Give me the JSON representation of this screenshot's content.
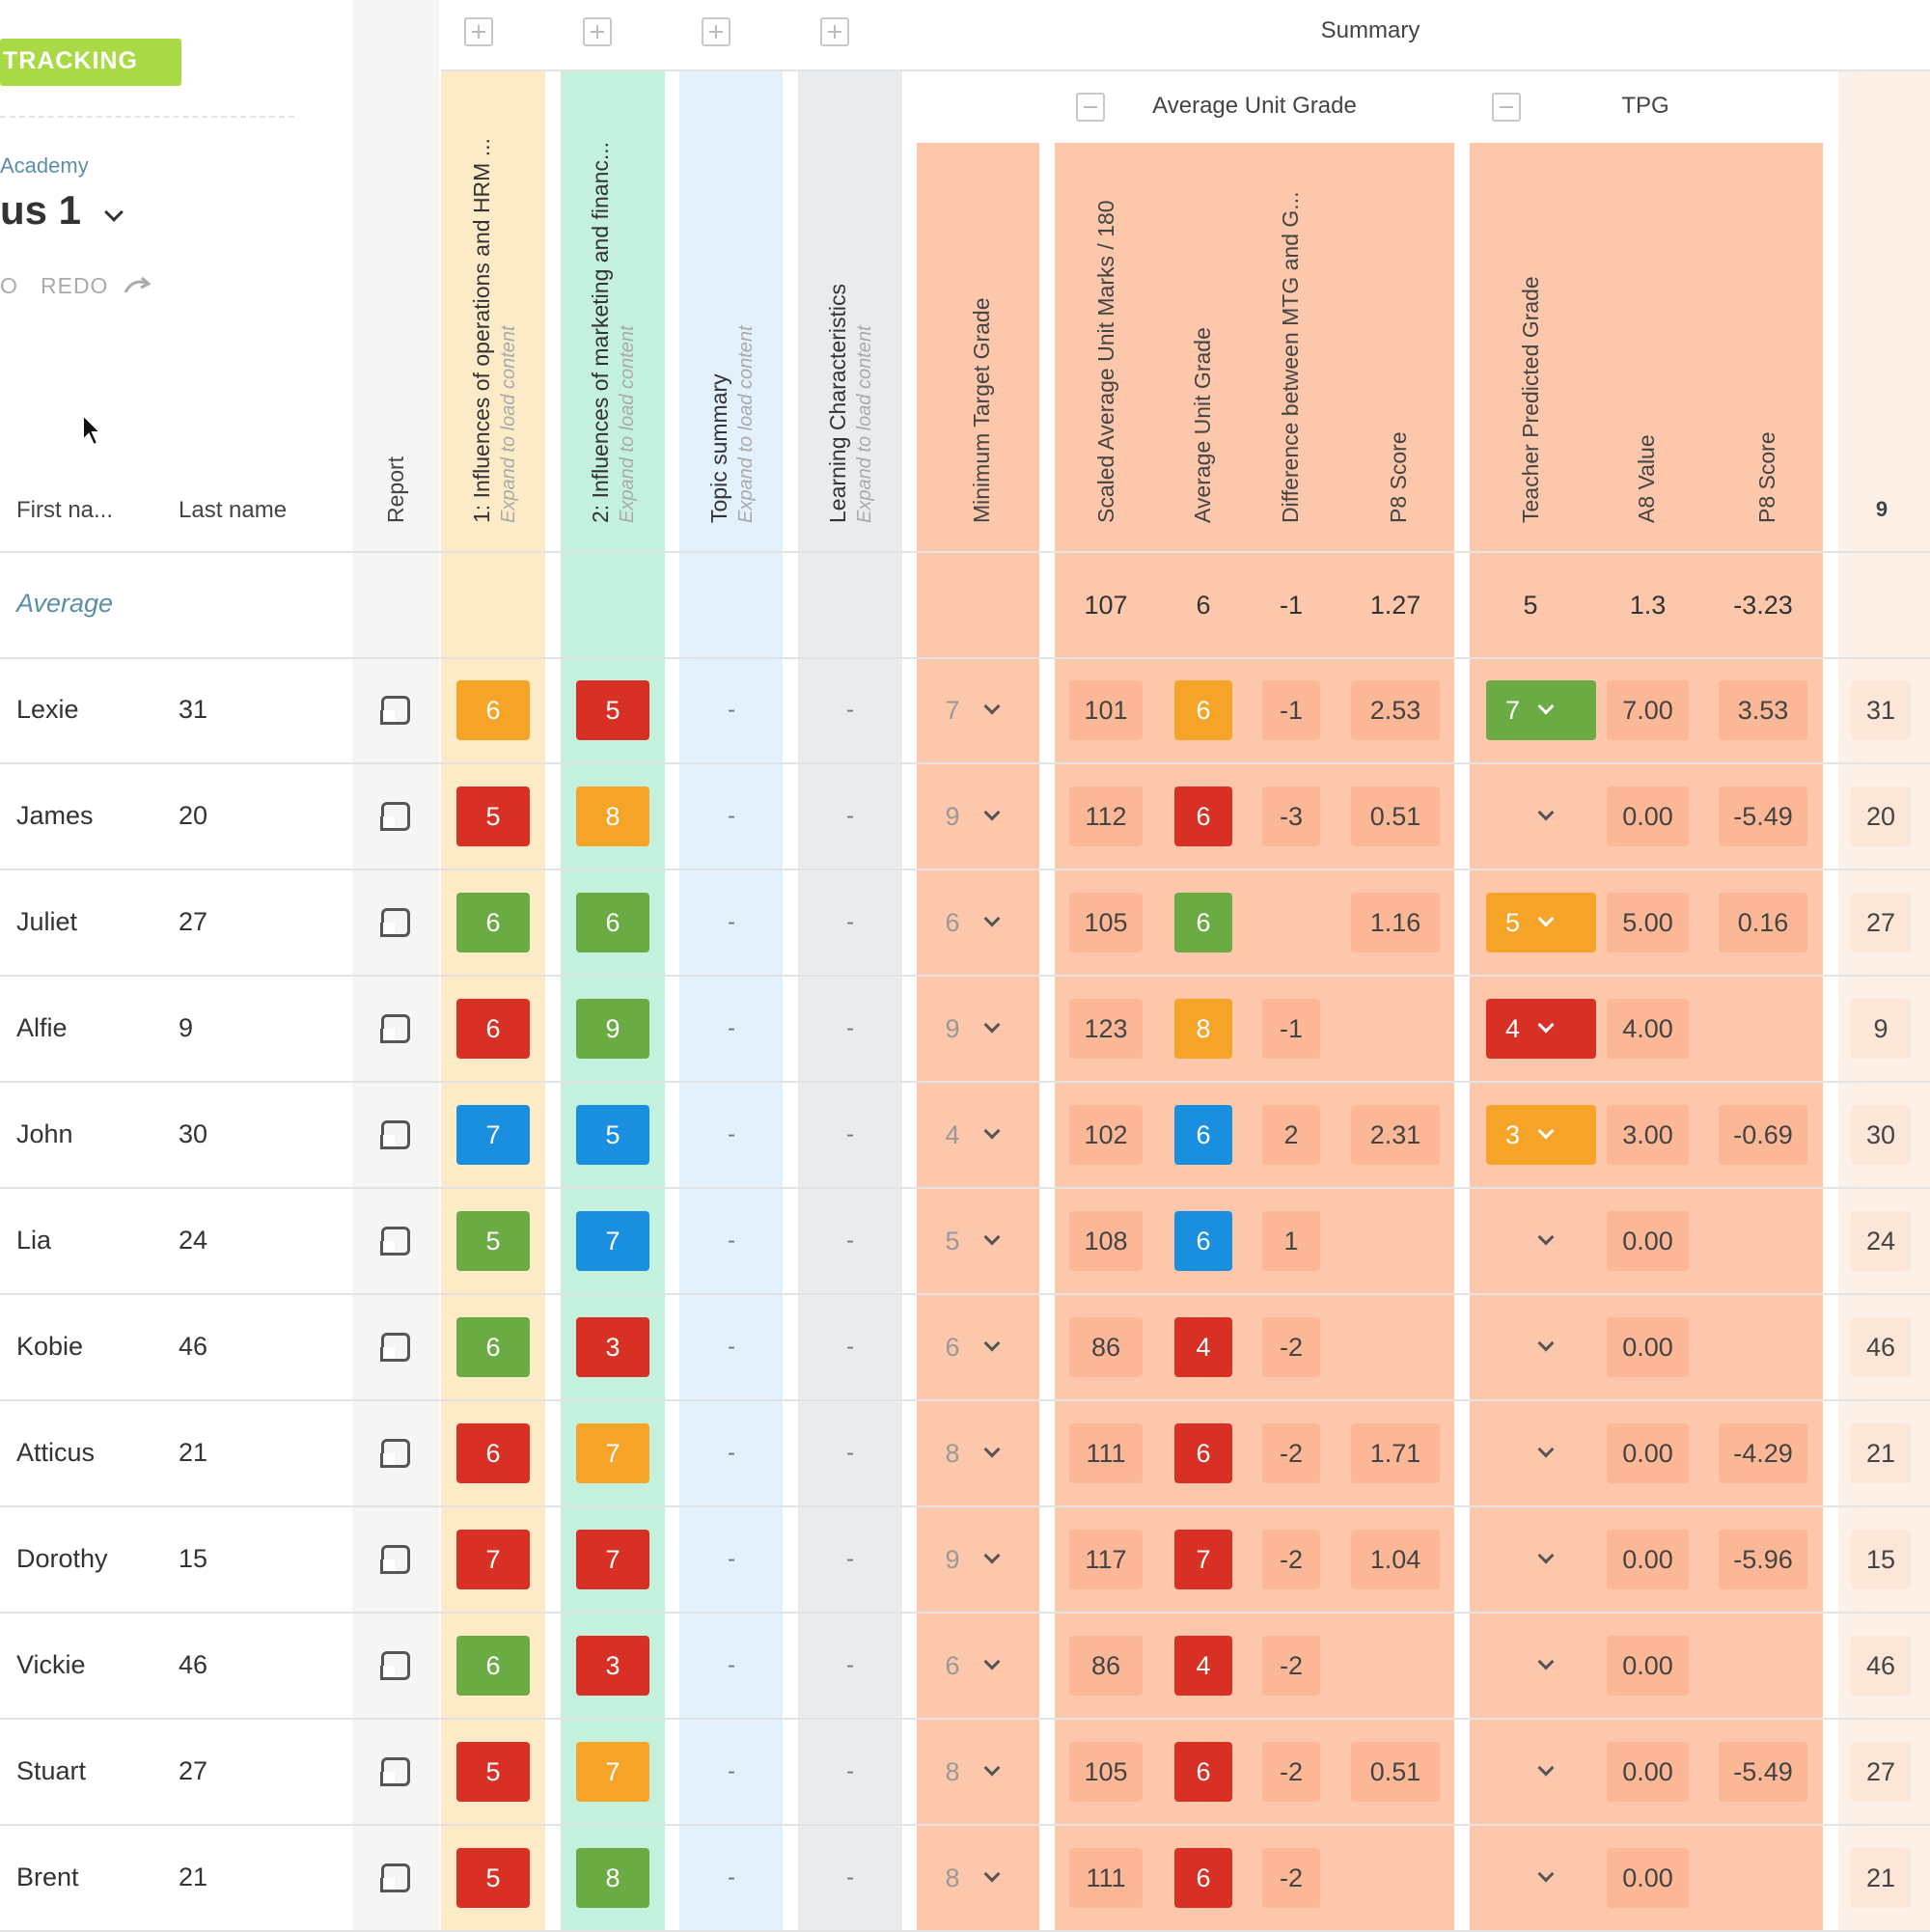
{
  "app": {
    "badge": "TRACKING",
    "school": "Academy",
    "cohort": "us 1",
    "undo_label": "O",
    "redo_label": "REDO"
  },
  "colors": {
    "tracking": "#a9d945",
    "green": "#6aab44",
    "red": "#d93025",
    "orange": "#f6a428",
    "blue": "#1a8fe0",
    "summary_bg": "#fcc7ab",
    "cell_soft": "#fbb796"
  },
  "headers": {
    "first_name": "First na...",
    "last_name": "Last name",
    "report": "Report",
    "summary": "Summary",
    "average_unit_grade_group": "Average Unit Grade",
    "tpg_group": "TPG",
    "unit1": "1: Influences of operations and HRM ...",
    "unit2": "2: Influences of marketing and financ...",
    "topic_summary": "Topic summary",
    "learning": "Learning Characteristics",
    "expand_hint": "Expand to load content",
    "mtg": "Minimum Target Grade",
    "scaled": "Scaled Average Unit Marks / 180",
    "avg_grade": "Average Unit Grade",
    "difference": "Difference between MTG and G...",
    "p8": "P8 Score",
    "tpg": "Teacher Predicted Grade",
    "a8": "A8 Value",
    "p8b": "P8 Score",
    "last_col": "9"
  },
  "average_row": {
    "label": "Average",
    "scaled": "107",
    "grade": "6",
    "diff": "-1",
    "p8": "1.27",
    "tpg": "5",
    "a8": "1.3",
    "p8b": "-3.23"
  },
  "rows": [
    {
      "first": "Lexie",
      "last": "31",
      "u1": "6",
      "u1c": "orange",
      "u2": "5",
      "u2c": "red",
      "ts": "-",
      "lc": "-",
      "mtg": "7",
      "scaled": "101",
      "grade": "6",
      "gradec": "orange",
      "diff": "-1",
      "p8": "2.53",
      "tpg": "7",
      "tpgc": "green",
      "a8": "7.00",
      "p8b": "3.53"
    },
    {
      "first": "James",
      "last": "20",
      "u1": "5",
      "u1c": "red",
      "u2": "8",
      "u2c": "orange",
      "ts": "-",
      "lc": "-",
      "mtg": "9",
      "scaled": "112",
      "grade": "6",
      "gradec": "red",
      "diff": "-3",
      "p8": "0.51",
      "tpg": "",
      "tpgc": "",
      "a8": "0.00",
      "p8b": "-5.49"
    },
    {
      "first": "Juliet",
      "last": "27",
      "u1": "6",
      "u1c": "green",
      "u2": "6",
      "u2c": "green",
      "ts": "-",
      "lc": "-",
      "mtg": "6",
      "scaled": "105",
      "grade": "6",
      "gradec": "green",
      "diff": "",
      "p8": "1.16",
      "tpg": "5",
      "tpgc": "orange",
      "a8": "5.00",
      "p8b": "0.16"
    },
    {
      "first": "Alfie",
      "last": "9",
      "u1": "6",
      "u1c": "red",
      "u2": "9",
      "u2c": "green",
      "ts": "-",
      "lc": "-",
      "mtg": "9",
      "scaled": "123",
      "grade": "8",
      "gradec": "orange",
      "diff": "-1",
      "p8": "",
      "tpg": "4",
      "tpgc": "red",
      "a8": "4.00",
      "p8b": ""
    },
    {
      "first": "John",
      "last": "30",
      "u1": "7",
      "u1c": "blue",
      "u2": "5",
      "u2c": "blue",
      "ts": "-",
      "lc": "-",
      "mtg": "4",
      "scaled": "102",
      "grade": "6",
      "gradec": "blue",
      "diff": "2",
      "p8": "2.31",
      "tpg": "3",
      "tpgc": "orange",
      "a8": "3.00",
      "p8b": "-0.69"
    },
    {
      "first": "Lia",
      "last": "24",
      "u1": "5",
      "u1c": "green",
      "u2": "7",
      "u2c": "blue",
      "ts": "-",
      "lc": "-",
      "mtg": "5",
      "scaled": "108",
      "grade": "6",
      "gradec": "blue",
      "diff": "1",
      "p8": "",
      "tpg": "",
      "tpgc": "",
      "a8": "0.00",
      "p8b": ""
    },
    {
      "first": "Kobie",
      "last": "46",
      "u1": "6",
      "u1c": "green",
      "u2": "3",
      "u2c": "red",
      "ts": "-",
      "lc": "-",
      "mtg": "6",
      "scaled": "86",
      "grade": "4",
      "gradec": "red",
      "diff": "-2",
      "p8": "",
      "tpg": "",
      "tpgc": "",
      "a8": "0.00",
      "p8b": ""
    },
    {
      "first": "Atticus",
      "last": "21",
      "u1": "6",
      "u1c": "red",
      "u2": "7",
      "u2c": "orange",
      "ts": "-",
      "lc": "-",
      "mtg": "8",
      "scaled": "111",
      "grade": "6",
      "gradec": "red",
      "diff": "-2",
      "p8": "1.71",
      "tpg": "",
      "tpgc": "",
      "a8": "0.00",
      "p8b": "-4.29"
    },
    {
      "first": "Dorothy",
      "last": "15",
      "u1": "7",
      "u1c": "red",
      "u2": "7",
      "u2c": "red",
      "ts": "-",
      "lc": "-",
      "mtg": "9",
      "scaled": "117",
      "grade": "7",
      "gradec": "red",
      "diff": "-2",
      "p8": "1.04",
      "tpg": "",
      "tpgc": "",
      "a8": "0.00",
      "p8b": "-5.96"
    },
    {
      "first": "Vickie",
      "last": "46",
      "u1": "6",
      "u1c": "green",
      "u2": "3",
      "u2c": "red",
      "ts": "-",
      "lc": "-",
      "mtg": "6",
      "scaled": "86",
      "grade": "4",
      "gradec": "red",
      "diff": "-2",
      "p8": "",
      "tpg": "",
      "tpgc": "",
      "a8": "0.00",
      "p8b": ""
    },
    {
      "first": "Stuart",
      "last": "27",
      "u1": "5",
      "u1c": "red",
      "u2": "7",
      "u2c": "orange",
      "ts": "-",
      "lc": "-",
      "mtg": "8",
      "scaled": "105",
      "grade": "6",
      "gradec": "red",
      "diff": "-2",
      "p8": "0.51",
      "tpg": "",
      "tpgc": "",
      "a8": "0.00",
      "p8b": "-5.49"
    },
    {
      "first": "Brent",
      "last": "21",
      "u1": "5",
      "u1c": "red",
      "u2": "8",
      "u2c": "green",
      "ts": "-",
      "lc": "-",
      "mtg": "8",
      "scaled": "111",
      "grade": "6",
      "gradec": "red",
      "diff": "-2",
      "p8": "",
      "tpg": "",
      "tpgc": "",
      "a8": "0.00",
      "p8b": ""
    }
  ]
}
